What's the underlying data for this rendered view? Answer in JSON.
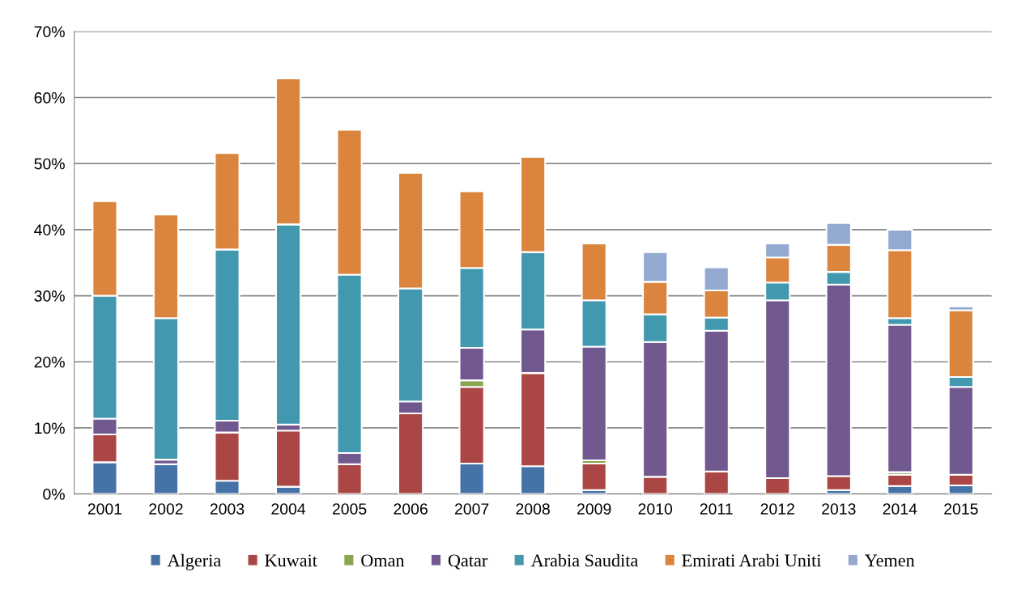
{
  "chart_data": {
    "type": "bar",
    "stacked": true,
    "categories": [
      "2001",
      "2002",
      "2003",
      "2004",
      "2005",
      "2006",
      "2007",
      "2008",
      "2009",
      "2010",
      "2011",
      "2012",
      "2013",
      "2014",
      "2015"
    ],
    "series": [
      {
        "name": "Algeria",
        "color": "#4572a7",
        "values": [
          4.8,
          4.5,
          2.0,
          1.1,
          0,
          0,
          4.6,
          4.2,
          0.6,
          null,
          0,
          null,
          0.6,
          1.2,
          1.3
        ]
      },
      {
        "name": "Kuwait",
        "color": "#aa4643",
        "values": [
          4.2,
          0,
          7.3,
          8.5,
          4.5,
          12.2,
          11.6,
          14.1,
          4.0,
          2.6,
          3.4,
          2.4,
          2.1,
          1.7,
          1.6
        ]
      },
      {
        "name": "Oman",
        "color": "#89a54e",
        "values": [
          0,
          0,
          0,
          0,
          0,
          0,
          1.0,
          0,
          0.5,
          0,
          0,
          0,
          0,
          0.4,
          0
        ]
      },
      {
        "name": "Qatar",
        "color": "#71588f",
        "values": [
          2.4,
          0.7,
          1.8,
          0.9,
          1.7,
          1.8,
          4.9,
          6.6,
          17.2,
          20.4,
          21.3,
          26.9,
          29.0,
          22.3,
          13.3
        ]
      },
      {
        "name": "Arabia Saudita",
        "color": "#4198af",
        "values": [
          18.6,
          21.4,
          25.9,
          30.3,
          27.0,
          17.1,
          12.1,
          11.7,
          7.0,
          4.2,
          2.0,
          2.7,
          1.9,
          1.0,
          1.5
        ]
      },
      {
        "name": "Emirati Arabi Uniti",
        "color": "#db843d",
        "values": [
          14.3,
          15.7,
          14.6,
          22.1,
          21.9,
          17.5,
          11.6,
          14.4,
          8.6,
          4.9,
          4.1,
          3.8,
          4.1,
          10.3,
          10.1
        ]
      },
      {
        "name": "Yemen",
        "color": "#93a9cf",
        "values": [
          0,
          0,
          0,
          0,
          0,
          0,
          0,
          0,
          0,
          4.5,
          3.5,
          2.1,
          3.3,
          3.1,
          0.6
        ]
      }
    ],
    "ylim": [
      0,
      70
    ],
    "yticks": [
      {
        "value": 0,
        "label": "0%"
      },
      {
        "value": 10,
        "label": "10%"
      },
      {
        "value": 20,
        "label": "20%"
      },
      {
        "value": 30,
        "label": "30%"
      },
      {
        "value": 40,
        "label": "40%"
      },
      {
        "value": 50,
        "label": "50%"
      },
      {
        "value": 60,
        "label": "60%"
      },
      {
        "value": 70,
        "label": "70%"
      }
    ],
    "grid": "y",
    "legend": "bottom"
  }
}
